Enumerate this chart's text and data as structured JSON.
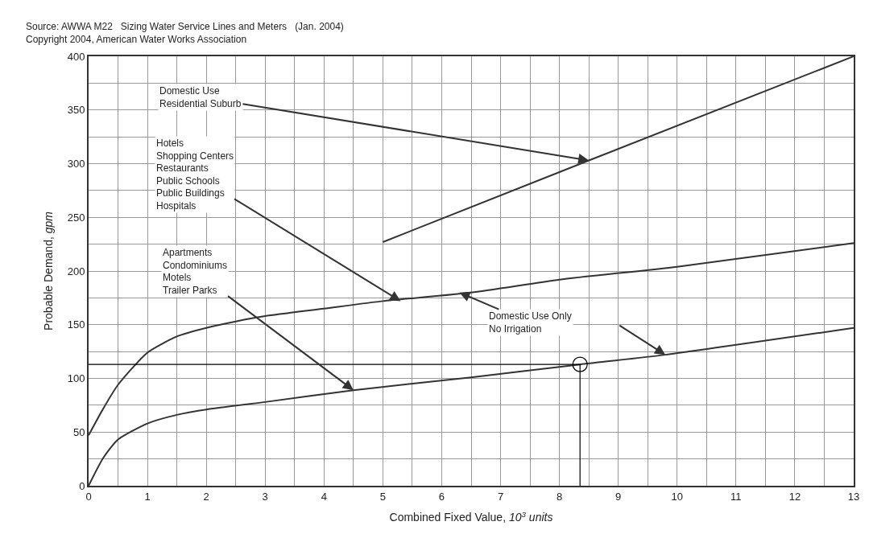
{
  "chart_data": {
    "type": "line",
    "title": "Source: AWWA M22   Sizing Water Service Lines and Meters   (Jan. 2004)",
    "subtitle": "Copyright 2004, American Water Works Association",
    "xlabel": "Combined Fixed Value, 10$^{3}$ units",
    "ylabel": "Probable Demand, gpm",
    "xlim": [
      0,
      13
    ],
    "ylim": [
      0,
      400
    ],
    "xticks": [
      0,
      {
        "value": 0.5,
        "label": null
      },
      1,
      {
        "value": 1.5,
        "label": null
      },
      2,
      {
        "value": 2.5,
        "label": null
      },
      3,
      {
        "value": 3.5,
        "label": null
      },
      4,
      {
        "value": 4.5,
        "label": null
      },
      5,
      {
        "value": 5.5,
        "label": null
      },
      6,
      {
        "value": 6.5,
        "label": null
      },
      7,
      {
        "value": 7.5,
        "label": null
      },
      8,
      {
        "value": 8.5,
        "label": null
      },
      9,
      {
        "value": 9.5,
        "label": null
      },
      10,
      {
        "value": 10.5,
        "label": null
      },
      11,
      {
        "value": 11.5,
        "label": null
      },
      12,
      {
        "value": 12.5,
        "label": null
      },
      13
    ],
    "yticks": [
      0,
      {
        "value": 25,
        "label": null
      },
      50,
      {
        "value": 75,
        "label": null
      },
      100,
      {
        "value": 125,
        "label": null
      },
      150,
      {
        "value": 175,
        "label": null
      },
      200,
      {
        "value": 225,
        "label": null
      },
      250,
      {
        "value": 275,
        "label": null
      },
      300,
      {
        "value": 325,
        "label": null
      },
      350,
      {
        "value": 375,
        "label": null
      },
      400
    ],
    "grid": true,
    "series": [
      {
        "color": "#333333",
        "x": [
          5,
          8.5,
          13
        ],
        "values": [
          227,
          303,
          400
        ]
      },
      {
        "color": "#333333",
        "x": [
          0,
          0.25,
          0.5,
          1,
          1.5,
          2,
          2.5,
          3,
          4,
          5,
          6.5,
          8,
          10,
          13
        ],
        "values": [
          47,
          72,
          94,
          124,
          139,
          147,
          153,
          158,
          165,
          172,
          180,
          192,
          204,
          226
        ]
      },
      {
        "color": "#333333",
        "x": [
          0,
          0.25,
          0.5,
          1,
          1.5,
          2,
          3,
          4.5,
          6.5,
          8.35,
          9.8,
          13
        ],
        "values": [
          0,
          26,
          43,
          58,
          66,
          71,
          78,
          89,
          101,
          113,
          122,
          147
        ]
      },
      {
        "color": "#000000",
        "x": [
          0,
          8.35,
          8.35
        ],
        "values": [
          113,
          113,
          0
        ]
      },
      {
        "type": "scatter",
        "color": "#000000",
        "marker": "circle",
        "x": [
          8.35
        ],
        "values": [
          113
        ]
      }
    ],
    "annotations": [
      {
        "text": "Domestic Use\nResidential Suburb",
        "x": 8.5,
        "y": 303
      },
      {
        "text": "Hotels\nShopping Centers\nRestaurants\nPublic Schools\nPublic Buildings\nHospitals",
        "x": 5.3,
        "y": 172
      },
      {
        "text": "Apartments\nCondominiums\nMotels\nTrailer Parks",
        "x": 4.5,
        "y": 89
      },
      {
        "text": "Domestic Use Only\nNo Irrigation",
        "x": 6.3,
        "y": 180
      }
    ]
  }
}
